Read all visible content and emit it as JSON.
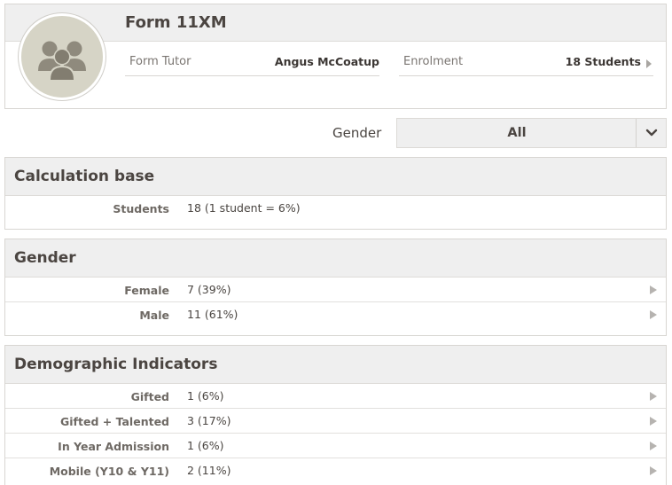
{
  "group": {
    "title": "Form 11XM",
    "tutor_label": "Form Tutor",
    "tutor_value": "Angus McCoatup",
    "enrolment_label": "Enrolment",
    "enrolment_value": "18 Students",
    "avatar_icon": "group-people-icon"
  },
  "filter": {
    "label": "Gender",
    "selected": "All",
    "toggle_icon": "chevron-down-icon"
  },
  "sections": {
    "calc": {
      "title": "Calculation base",
      "rows": [
        {
          "label": "Students",
          "value": "18 (1 student = 6%)"
        }
      ]
    },
    "gender": {
      "title": "Gender",
      "rows": [
        {
          "label": "Female",
          "value": "7 (39%)"
        },
        {
          "label": "Male",
          "value": "11 (61%)"
        }
      ]
    },
    "demo": {
      "title": "Demographic Indicators",
      "rows": [
        {
          "label": "Gifted",
          "value": "1 (6%)"
        },
        {
          "label": "Gifted + Talented",
          "value": "3 (17%)"
        },
        {
          "label": "In Year Admission",
          "value": "1 (6%)"
        },
        {
          "label": "Mobile (Y10 & Y11)",
          "value": "2 (11%)"
        }
      ]
    }
  },
  "colors": {
    "header_bg": "#efefef",
    "avatar_bg": "#d6d4c6",
    "avatar_figure": "#8f8a7d",
    "text": "#4a4541",
    "arrow": "#b6b3b0"
  }
}
